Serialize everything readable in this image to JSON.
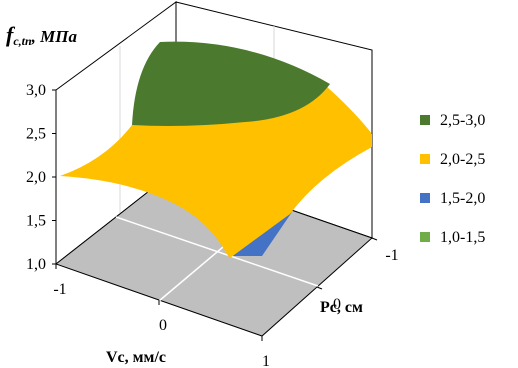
{
  "chart_data": {
    "type": "surface",
    "zlabel_main": "f",
    "zlabel_sub": "c,tn",
    "zlabel_unit": ", МПа",
    "xlabel": "Vc, мм/с",
    "ylabel": "Pc, см",
    "x_ticks": [
      "-1",
      "0",
      "1"
    ],
    "y_ticks": [
      "0",
      "-1"
    ],
    "z_ticks": [
      "1,0",
      "1,5",
      "2,0",
      "2,5",
      "3,0"
    ],
    "zlim": [
      1.0,
      3.0
    ],
    "legend": [
      {
        "label": "2,5-3,0",
        "color": "#4b7a2e"
      },
      {
        "label": "2,0-2,5",
        "color": "#ffc000"
      },
      {
        "label": "1,5-2,0",
        "color": "#4472c4"
      },
      {
        "label": "1,0-1,5",
        "color": "#70ad47"
      }
    ],
    "floor_color": "#bfbfbf"
  }
}
